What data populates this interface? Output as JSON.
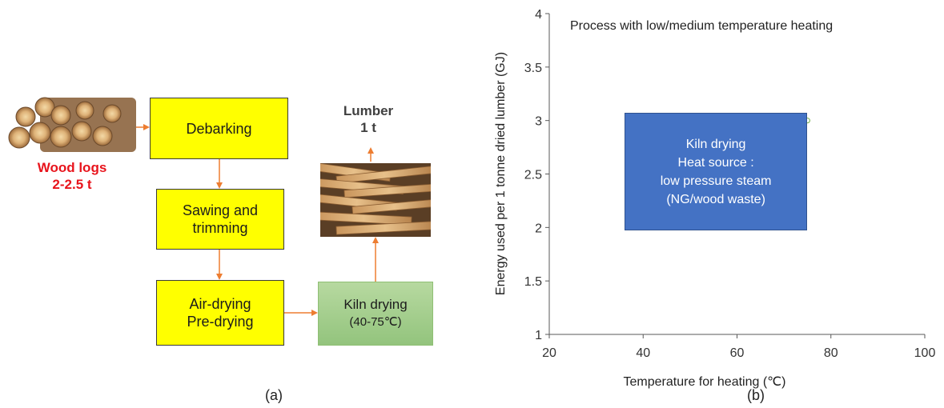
{
  "panel_a": {
    "wood_logs_label": [
      "Wood logs",
      "2-2.5 t"
    ],
    "steps": {
      "debarking": "Debarking",
      "sawing": [
        "Sawing and",
        "trimming"
      ],
      "air_drying": [
        "Air-drying",
        "Pre-drying"
      ],
      "kiln": [
        "Kiln drying",
        "(40-75℃)"
      ]
    },
    "lumber_label": [
      "Lumber",
      "1 t"
    ],
    "caption": "(a)"
  },
  "panel_b": {
    "caption": "(b)",
    "chart_data": {
      "type": "scatter",
      "title": "Process with low/medium temperature heating",
      "xlabel": "Temperature for heating (℃)",
      "ylabel": "Energy used per 1 tonne dried lumber (GJ)",
      "xlim": [
        20,
        100
      ],
      "ylim": [
        1,
        4
      ],
      "x_ticks": [
        "20",
        "40",
        "60",
        "80",
        "100"
      ],
      "y_ticks": [
        "1",
        "1.5",
        "2",
        "2.5",
        "3",
        "3.5",
        "4"
      ],
      "points": [
        {
          "x": 75,
          "y": 3
        }
      ],
      "box": {
        "x_range": [
          36,
          75
        ],
        "y_range": [
          1.97,
          3.07
        ],
        "lines": [
          "Kiln drying",
          "Heat source :",
          "low pressure steam",
          "(NG/wood waste)"
        ]
      },
      "grid": false,
      "legend": "none"
    }
  },
  "colors": {
    "yellow_box": "#ffff00",
    "green_box": "#a9d18e",
    "arrow": "#ed7d31",
    "wood_label": "#e8141c",
    "blue_box": "#4472c4"
  }
}
